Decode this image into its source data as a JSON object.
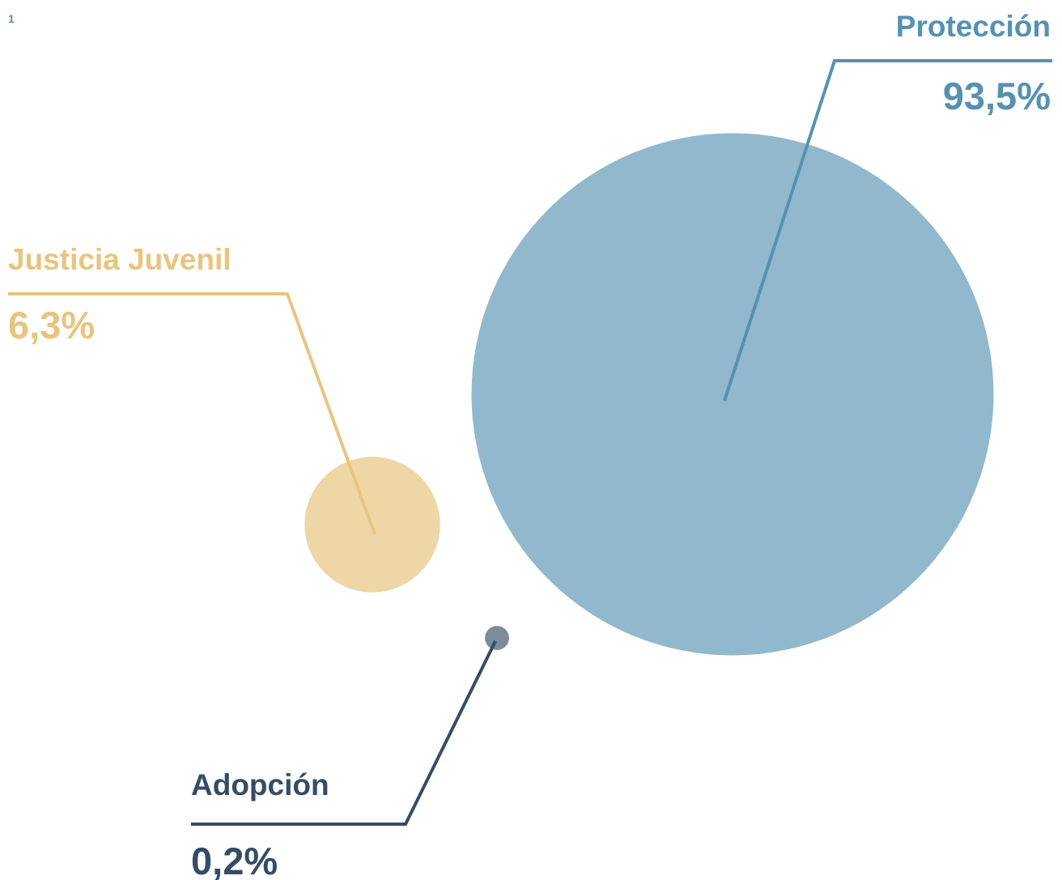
{
  "page_number": "1",
  "chart_data": {
    "type": "bubble",
    "title": "",
    "xlabel": "",
    "ylabel": "",
    "grid": false,
    "legend": "none",
    "series": [
      {
        "name": "Protección",
        "value": 93.5,
        "label": "93,5%",
        "color": "#91b8cc",
        "accent": "#5691b1"
      },
      {
        "name": "Justicia Juvenil",
        "value": 6.3,
        "label": "6,3%",
        "color": "#eed6a7",
        "accent": "#e8c47e"
      },
      {
        "name": "Adopción",
        "value": 0.2,
        "label": "0,2%",
        "color": "#7e8b9b",
        "accent": "#364c66"
      }
    ]
  }
}
